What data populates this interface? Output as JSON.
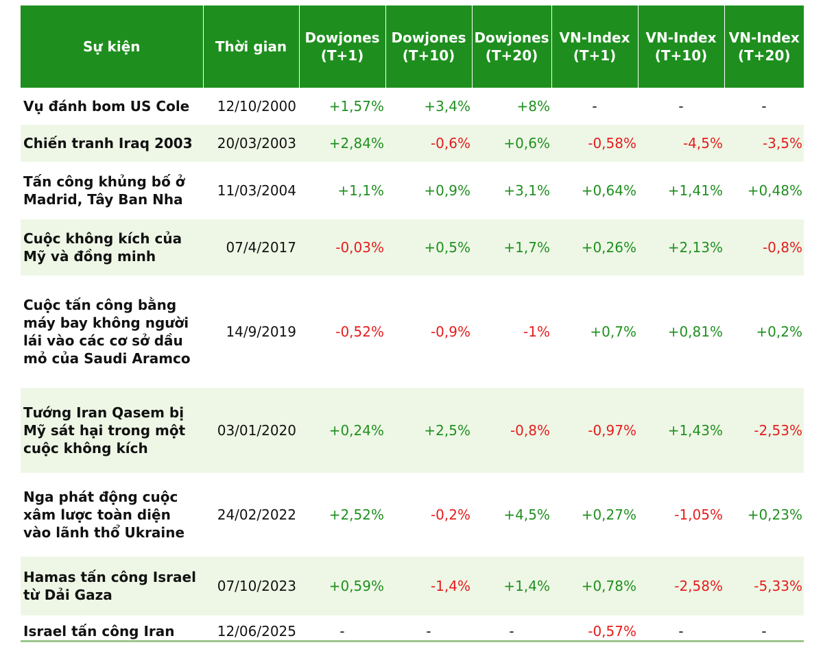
{
  "colors": {
    "header_bg": "#1e8f1e",
    "positive": "#1f8f1f",
    "negative": "#e51c1c",
    "alt_row": "#eef7e6"
  },
  "headers": [
    "Sự kiện",
    "Thời gian",
    "Dowjones\n(T+1)",
    "Dowjones\n(T+10)",
    "Dowjones\n(T+20)",
    "VN-Index\n(T+1)",
    "VN-Index\n(T+10)",
    "VN-Index\n(T+20)"
  ],
  "rows": [
    {
      "event": "Vụ đánh bom US Cole",
      "date": "12/10/2000",
      "values": [
        "+1,57%",
        "+3,4%",
        "+8%",
        "-",
        "-",
        "-"
      ]
    },
    {
      "event": "Chiến tranh Iraq 2003",
      "date": "20/03/2003",
      "values": [
        "+2,84%",
        "-0,6%",
        "+0,6%",
        "-0,58%",
        "-4,5%",
        "-3,5%"
      ]
    },
    {
      "event": "Tấn công khủng bố ở Madrid, Tây Ban Nha",
      "date": "11/03/2004",
      "values": [
        "+1,1%",
        "+0,9%",
        "+3,1%",
        "+0,64%",
        "+1,41%",
        "+0,48%"
      ]
    },
    {
      "event": "Cuộc không kích của Mỹ và đồng minh",
      "date": "07/4/2017",
      "values": [
        "-0,03%",
        "+0,5%",
        "+1,7%",
        "+0,26%",
        "+2,13%",
        "-0,8%"
      ]
    },
    {
      "event": "Cuộc tấn công bằng máy bay không người lái vào các cơ sở dầu mỏ của Saudi Aramco",
      "date": "14/9/2019",
      "values": [
        "-0,52%",
        "-0,9%",
        "-1%",
        "+0,7%",
        "+0,81%",
        "+0,2%"
      ]
    },
    {
      "event": "Tướng Iran Qasem bị Mỹ sát hại trong một cuộc không kích",
      "date": "03/01/2020",
      "values": [
        "+0,24%",
        "+2,5%",
        "-0,8%",
        "-0,97%",
        "+1,43%",
        "-2,53%"
      ]
    },
    {
      "event": "Nga phát động cuộc xâm lược toàn diện vào lãnh thổ Ukraine",
      "date": "24/02/2022",
      "values": [
        "+2,52%",
        "-0,2%",
        "+4,5%",
        "+0,27%",
        "-1,05%",
        "+0,23%"
      ]
    },
    {
      "event": "Hamas tấn công Israel từ Dải Gaza",
      "date": "07/10/2023",
      "values": [
        "+0,59%",
        "-1,4%",
        "+1,4%",
        "+0,78%",
        "-2,58%",
        "-5,33%"
      ]
    },
    {
      "event": "Israel tấn công Iran",
      "date": "12/06/2025",
      "values": [
        "-",
        "-",
        "-",
        "-0,57%",
        "-",
        "-"
      ]
    }
  ]
}
